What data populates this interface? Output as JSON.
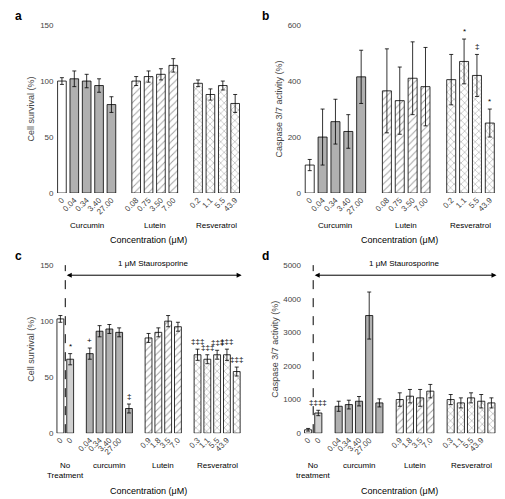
{
  "chart_data": [
    {
      "type": "bar",
      "title": "a",
      "ylabel": "Cell survival (%)",
      "xlabel": "Concentration (μM)",
      "ylim": [
        0,
        150
      ],
      "yticks": [
        0,
        50,
        100,
        150
      ],
      "grid": false,
      "groups": [
        {
          "label": "Curcumin",
          "categories": [
            "0",
            "0.04",
            "0.34",
            "3.40",
            "27.00"
          ],
          "values": [
            100,
            102,
            100,
            96,
            79
          ],
          "errors": [
            3,
            7,
            6,
            6,
            7
          ],
          "colors": [
            "white",
            "#b0b0b0",
            "#b0b0b0",
            "#b0b0b0",
            "#b0b0b0"
          ]
        },
        {
          "label": "Lutein",
          "marker": "diagonal",
          "categories": [
            "0.08",
            "0.75",
            "3.50",
            "7.00"
          ],
          "values": [
            100,
            104,
            106,
            114
          ],
          "errors": [
            4,
            5,
            5,
            6
          ],
          "colors": [
            "white",
            "white",
            "white",
            "white"
          ]
        },
        {
          "label": "Resveratrol",
          "marker": "cross",
          "categories": [
            "0.2",
            "1.1",
            "5.5",
            "43.9"
          ],
          "values": [
            98,
            88,
            96,
            80
          ],
          "errors": [
            3,
            5,
            4,
            8
          ],
          "colors": [
            "white",
            "white",
            "white",
            "white"
          ]
        }
      ]
    },
    {
      "type": "bar",
      "title": "b",
      "ylabel": "Caspase 3/7 activity (%)",
      "xlabel": "Concentration (μM)",
      "ylim": [
        0,
        600
      ],
      "yticks": [
        0,
        200,
        400,
        600
      ],
      "grid": false,
      "groups": [
        {
          "label": "Curcumin",
          "categories": [
            "0",
            "0.04",
            "0.34",
            "3.40",
            "27.00"
          ],
          "values": [
            100,
            200,
            255,
            220,
            415
          ],
          "errors": [
            20,
            100,
            80,
            60,
            95
          ],
          "colors": [
            "white",
            "#b0b0b0",
            "#b0b0b0",
            "#b0b0b0",
            "#b0b0b0"
          ]
        },
        {
          "label": "Lutein",
          "marker": "diagonal",
          "categories": [
            "0.08",
            "0.75",
            "3.50",
            "7.00"
          ],
          "values": [
            365,
            330,
            410,
            380
          ],
          "errors": [
            150,
            120,
            130,
            140
          ],
          "colors": [
            "white",
            "white",
            "white",
            "white"
          ]
        },
        {
          "label": "Resveratrol",
          "marker": "cross",
          "categories": [
            "0.2",
            "1.1",
            "5.5",
            "43.9"
          ],
          "values": [
            405,
            470,
            420,
            250
          ],
          "errors": [
            90,
            80,
            75,
            50
          ],
          "colors": [
            "white",
            "white",
            "white",
            "white"
          ],
          "significance": [
            null,
            "*",
            "‡",
            "*"
          ]
        }
      ]
    },
    {
      "type": "bar",
      "title": "c",
      "ylabel": "Cell survival (%)",
      "xlabel": "Concentration (μM)",
      "ylim": [
        0,
        150
      ],
      "yticks": [
        0,
        50,
        100,
        150
      ],
      "grid": false,
      "annotations": [
        {
          "text": "1 μM Staurosporine",
          "from_group": 0,
          "from_index": 1
        }
      ],
      "groups": [
        {
          "label": "No\nTreatment",
          "categories": [
            "0",
            "0"
          ],
          "values": [
            102,
            66
          ],
          "errors": [
            3,
            5
          ],
          "colors": [
            "white",
            "#d0d0d0"
          ],
          "significance": [
            null,
            "*"
          ]
        },
        {
          "label": "curcumin",
          "categories": [
            "0.04",
            "0.34",
            "3.40",
            "27.00",
            null
          ],
          "values": [
            71,
            91,
            93,
            90,
            22
          ],
          "errors": [
            5,
            5,
            4,
            4,
            4
          ],
          "colors": [
            "#b0b0b0",
            "#b0b0b0",
            "#b0b0b0",
            "#b0b0b0",
            "#b0b0b0"
          ],
          "significance": [
            "+",
            null,
            null,
            null,
            "‡"
          ]
        },
        {
          "label": "Lutein",
          "marker": "diagonal",
          "categories": [
            "0.9",
            "1.8",
            "3.5",
            "7.0"
          ],
          "values": [
            85,
            90,
            100,
            95
          ],
          "errors": [
            4,
            4,
            5,
            4
          ],
          "colors": [
            "white",
            "white",
            "white",
            "white"
          ]
        },
        {
          "label": "Resveratrol",
          "marker": "cross",
          "categories": [
            "0.3",
            "1.1",
            "5.5",
            "43.9",
            null
          ],
          "values": [
            70,
            66,
            70,
            70,
            55
          ],
          "errors": [
            5,
            4,
            4,
            5,
            4
          ],
          "colors": [
            "white",
            "white",
            "white",
            "white",
            "white"
          ],
          "significance": [
            "‡‡‡",
            "‡‡‡",
            "‡‡‡",
            "‡‡‡",
            "‡‡‡"
          ]
        }
      ]
    },
    {
      "type": "bar",
      "title": "d",
      "ylabel": "Caspase 3/7 activity (%)",
      "xlabel": "Concentration (μM)",
      "ylim": [
        0,
        5000
      ],
      "yticks": [
        0,
        1000,
        2000,
        3000,
        4000,
        5000
      ],
      "grid": false,
      "annotations": [
        {
          "text": "1 μM Staurosporine",
          "from_group": 0,
          "from_index": 1
        }
      ],
      "groups": [
        {
          "label": "No\ntreatment",
          "categories": [
            "0",
            "0"
          ],
          "values": [
            100,
            600
          ],
          "errors": [
            40,
            80
          ],
          "colors": [
            "white",
            "#d0d0d0"
          ],
          "significance": [
            null,
            "‡‡‡‡"
          ]
        },
        {
          "label": "curcumin",
          "categories": [
            "0.04",
            "0.34",
            "3.40",
            "27.00",
            null
          ],
          "values": [
            800,
            850,
            950,
            3500,
            900
          ],
          "errors": [
            150,
            130,
            140,
            700,
            120
          ],
          "colors": [
            "#b0b0b0",
            "#b0b0b0",
            "#b0b0b0",
            "#b0b0b0",
            "#b0b0b0"
          ]
        },
        {
          "label": "Lutein",
          "marker": "diagonal",
          "categories": [
            "0.9",
            "1.8",
            "3.5",
            "7.0"
          ],
          "values": [
            1000,
            1100,
            1050,
            1250
          ],
          "errors": [
            200,
            200,
            250,
            200
          ],
          "colors": [
            "white",
            "white",
            "white",
            "white"
          ]
        },
        {
          "label": "Resveratrol",
          "marker": "cross",
          "categories": [
            "0.3",
            "1.1",
            "5.5",
            "43.9",
            null
          ],
          "values": [
            1000,
            900,
            1050,
            950,
            900
          ],
          "errors": [
            150,
            150,
            150,
            200,
            150
          ],
          "colors": [
            "white",
            "white",
            "white",
            "white",
            "white"
          ]
        }
      ]
    }
  ]
}
